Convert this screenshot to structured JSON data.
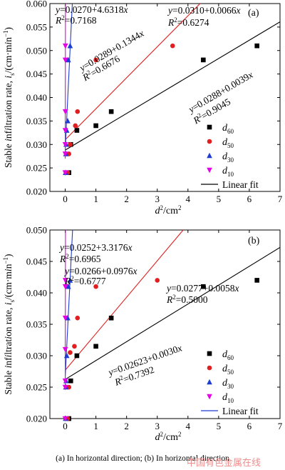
{
  "colors": {
    "d60": "#000000",
    "d50": "#e02020",
    "d30": "#1e3cd2",
    "d10": "#e600e6",
    "axis": "#000000"
  },
  "caption": "(a)  In  horizontal  direction;  (b) In horizontal direction",
  "watermark": "中国有色金属在线",
  "chart_data": [
    {
      "type": "scatter",
      "panel_label": "(a)",
      "xlabel": "d²/cm²",
      "ylabel": "Stable infiltration rate, iₛ/(cm·min⁻¹)",
      "xlim": [
        -0.5,
        7
      ],
      "ylim": [
        0.02,
        0.06
      ],
      "xticks": [
        "0",
        "1",
        "2",
        "3",
        "4",
        "5",
        "6",
        "7"
      ],
      "yticks": [
        "0.020",
        "0.025",
        "0.030",
        "0.035",
        "0.040",
        "0.045",
        "0.050",
        "0.055",
        "0.060"
      ],
      "legend": {
        "position": "bottom-right",
        "entries": [
          "d60",
          "d50",
          "d30",
          "d10",
          "Linear fit"
        ]
      },
      "series": [
        {
          "name": "d60",
          "marker": "square",
          "x": [
            0.12,
            0.18,
            0.38,
            1.0,
            1.5,
            4.5,
            6.25
          ],
          "y": [
            0.024,
            0.03,
            0.033,
            0.034,
            0.037,
            0.048,
            0.051
          ],
          "fit": {
            "intercept": 0.0288,
            "slope": 0.0039
          }
        },
        {
          "name": "d50",
          "marker": "circle",
          "x": [
            0.08,
            0.12,
            0.16,
            0.33,
            0.4,
            1.0,
            3.5
          ],
          "y": [
            0.024,
            0.028,
            0.03,
            0.034,
            0.037,
            0.048,
            0.051
          ],
          "fit": {
            "intercept": 0.031,
            "slope": 0.0066
          }
        },
        {
          "name": "d30",
          "marker": "triangle",
          "x": [
            0.01,
            0.02,
            0.03,
            0.05,
            0.08,
            0.1,
            0.16
          ],
          "y": [
            0.024,
            0.028,
            0.03,
            0.033,
            0.035,
            0.048,
            0.051
          ],
          "fit": {
            "intercept": 0.0289,
            "slope": 0.1344
          }
        },
        {
          "name": "d10",
          "marker": "triangle-down",
          "x": [
            0.0,
            0.001,
            0.002,
            0.003,
            0.004,
            0.005,
            0.006
          ],
          "y": [
            0.024,
            0.028,
            0.03,
            0.033,
            0.037,
            0.048,
            0.051
          ],
          "fit": {
            "intercept": 0.027,
            "slope": 4.6318
          }
        }
      ],
      "annotations": [
        {
          "eq": "y=0.0270+4.6318x",
          "r2": "R²=0.7168"
        },
        {
          "eq": "y=0.0310+0.0066x",
          "r2": "R²=0.6274"
        },
        {
          "eq": "y=0.0289+0.1344x",
          "r2": "R²=0.6676"
        },
        {
          "eq": "y=0.0288+0.0039x",
          "r2": "R²=0.9045"
        }
      ]
    },
    {
      "type": "scatter",
      "panel_label": "(b)",
      "xlabel": "d²/cm²",
      "ylabel": "Stable infiltration rate, iₛ/(cm·min⁻¹)",
      "xlim": [
        -0.5,
        7
      ],
      "ylim": [
        0.02,
        0.05
      ],
      "xticks": [
        "0",
        "1",
        "2",
        "3",
        "4",
        "5",
        "6",
        "7"
      ],
      "yticks": [
        "0.020",
        "0.025",
        "0.030",
        "0.035",
        "0.040",
        "0.045",
        "0.050"
      ],
      "legend": {
        "position": "bottom-right",
        "entries": [
          "d60",
          "d50",
          "d30",
          "d10",
          "Linear fit"
        ]
      },
      "series": [
        {
          "name": "d60",
          "marker": "square",
          "x": [
            0.12,
            0.18,
            0.38,
            1.0,
            1.5,
            4.5,
            6.25
          ],
          "y": [
            0.02,
            0.026,
            0.03,
            0.0315,
            0.036,
            0.041,
            0.042
          ],
          "fit": {
            "intercept": 0.02623,
            "slope": 0.003
          }
        },
        {
          "name": "d50",
          "marker": "circle",
          "x": [
            0.08,
            0.12,
            0.16,
            0.3,
            0.4,
            1.0,
            3.0
          ],
          "y": [
            0.02,
            0.025,
            0.0305,
            0.0315,
            0.036,
            0.041,
            0.042
          ],
          "fit": {
            "intercept": 0.0277,
            "slope": 0.0058
          }
        },
        {
          "name": "d30",
          "marker": "triangle",
          "x": [
            0.01,
            0.02,
            0.03,
            0.05,
            0.08,
            0.1,
            0.16
          ],
          "y": [
            0.02,
            0.025,
            0.026,
            0.03,
            0.036,
            0.041,
            0.042
          ],
          "fit": {
            "intercept": 0.0266,
            "slope": 0.0976
          }
        },
        {
          "name": "d10",
          "marker": "triangle-down",
          "x": [
            0.0,
            0.001,
            0.002,
            0.003,
            0.004,
            0.005,
            0.006
          ],
          "y": [
            0.02,
            0.025,
            0.026,
            0.031,
            0.036,
            0.041,
            0.042
          ],
          "fit": {
            "intercept": 0.0252,
            "slope": 3.3176
          }
        }
      ],
      "annotations": [
        {
          "eq": "y=0.0252+3.3176x",
          "r2": "R²=0.6965"
        },
        {
          "eq": "y=0.0266+0.0976x",
          "r2": "R²=0.6777"
        },
        {
          "eq": "y=0.0277+0.0058x",
          "r2": "R²=0.5000"
        },
        {
          "eq": "y=0.02623+0.0030x",
          "r2": "R²=0.7392"
        }
      ]
    }
  ]
}
